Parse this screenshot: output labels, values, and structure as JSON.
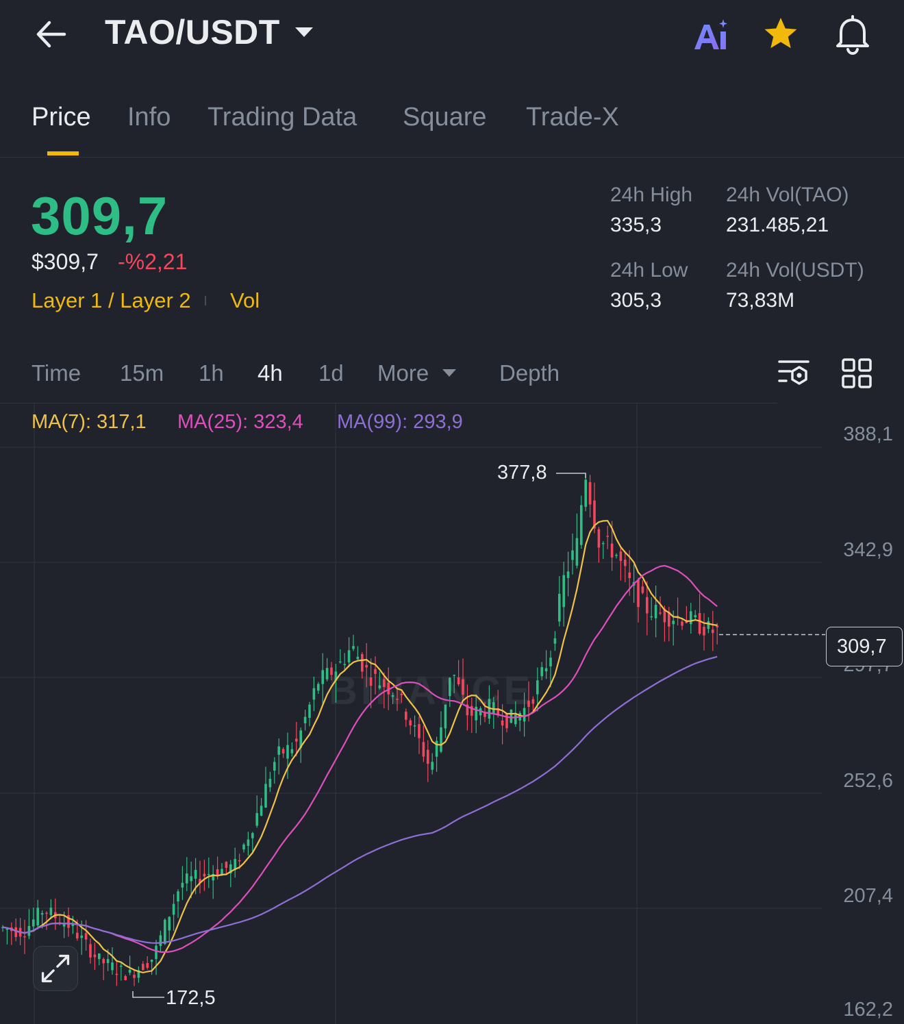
{
  "header": {
    "pair": "TAO/USDT",
    "icons": [
      "back-arrow-icon",
      "chevron-down-icon",
      "ai-icon",
      "star-icon",
      "bell-icon"
    ]
  },
  "tabs": [
    {
      "label": "Price",
      "active": true
    },
    {
      "label": "Info"
    },
    {
      "label": "Trading Data"
    },
    {
      "label": "Square"
    },
    {
      "label": "Trade-X"
    }
  ],
  "ticker": {
    "last_price": "309,7",
    "usd_price": "$309,7",
    "change": "-%2,21",
    "tags": [
      "Layer 1 / Layer 2",
      "Vol"
    ],
    "stats": [
      {
        "label": "24h High",
        "value": "335,3"
      },
      {
        "label": "24h Vol(TAO)",
        "value": "231.485,21"
      },
      {
        "label": "24h Low",
        "value": "305,3"
      },
      {
        "label": "24h Vol(USDT)",
        "value": "73,83M"
      }
    ]
  },
  "intervals": {
    "items": [
      "Time",
      "15m",
      "1h",
      "4h",
      "1d",
      "More",
      "Depth"
    ],
    "active": "4h"
  },
  "ma_legend": [
    {
      "label": "MA(7): 317,1",
      "color": "#f0c24a"
    },
    {
      "label": "MA(25): 323,4",
      "color": "#de4fbe"
    },
    {
      "label": "MA(99): 293,9",
      "color": "#8e6fd6"
    }
  ],
  "watermark": "BINANCE",
  "chart_data": {
    "type": "candlestick",
    "y_ticks": [
      "388,1",
      "342,9",
      "297,7",
      "252,6",
      "207,4",
      "162,2"
    ],
    "y_tick_values": [
      388.1,
      342.9,
      297.7,
      252.6,
      207.4,
      162.2
    ],
    "current_price_label": "309,7",
    "current_price": 309.7,
    "high_marker": {
      "label": "377,8",
      "value": 377.8
    },
    "low_marker": {
      "label": "172,5",
      "value": 172.5
    },
    "ma7_value": 317.1,
    "ma25_value": 323.4,
    "ma99_value": 293.9,
    "up_color": "#2ebd85",
    "down_color": "#f6465d"
  }
}
